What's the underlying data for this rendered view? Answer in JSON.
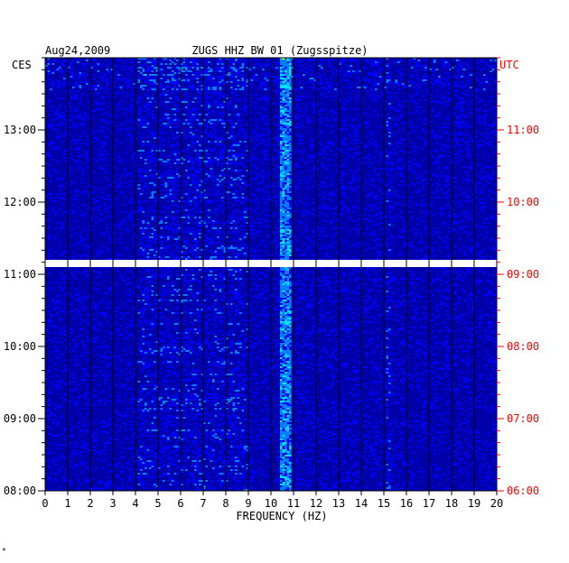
{
  "header": {
    "date": "Aug24,2009",
    "station": "ZUGS HHZ BW 01 (Zugsspitze)",
    "left_timezone": "CES",
    "right_timezone": "UTC"
  },
  "chart_data": {
    "type": "heatmap",
    "title": "ZUGS HHZ BW 01 (Zugsspitze)",
    "date": "Aug24,2009",
    "xlabel": "FREQUENCY (HZ)",
    "xlim": [
      0,
      20
    ],
    "x_ticks": [
      "0",
      "1",
      "2",
      "3",
      "4",
      "5",
      "6",
      "7",
      "8",
      "9",
      "10",
      "11",
      "12",
      "13",
      "14",
      "15",
      "16",
      "17",
      "18",
      "19",
      "20"
    ],
    "y_left_label": "CES",
    "y_right_label": "UTC",
    "y_left_ticks": [
      "13:00",
      "12:00",
      "11:00",
      "10:00",
      "09:00",
      "08:00"
    ],
    "y_right_ticks": [
      "11:00",
      "10:00",
      "09:00",
      "08:00",
      "07:00",
      "06:00"
    ],
    "y_left_range": [
      "08:00",
      "13:49"
    ],
    "data_gap": "~11:00 to ~11:07 CES (no data)",
    "colorscale": [
      "#00008b",
      "#0000ff",
      "#0080ff",
      "#00e0ff",
      "#ffff00",
      "#ff0000"
    ],
    "notable_features": [
      "persistent narrow band near 10.5-10.8 Hz",
      "weak line near 15.2 Hz",
      "broadband energy 4-9 Hz in discrete bursts"
    ]
  },
  "footer": {
    "mark": "*"
  }
}
